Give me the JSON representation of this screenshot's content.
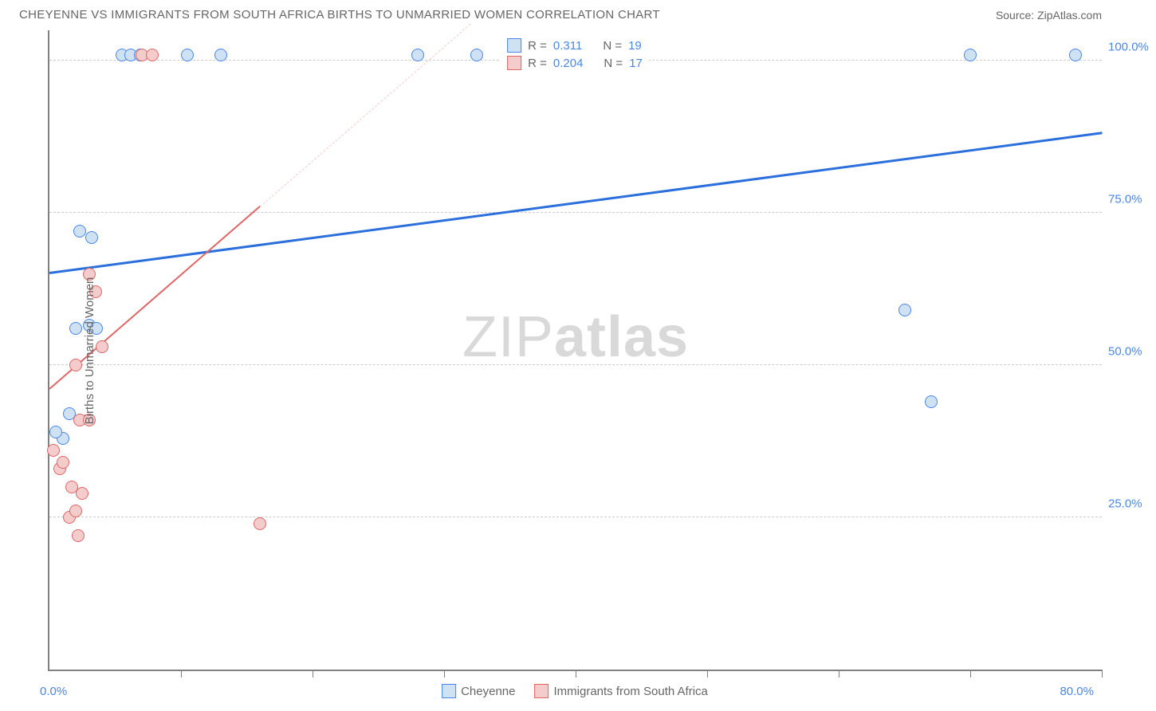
{
  "header": {
    "title": "CHEYENNE VS IMMIGRANTS FROM SOUTH AFRICA BIRTHS TO UNMARRIED WOMEN CORRELATION CHART",
    "source": "Source: ZipAtlas.com"
  },
  "chart": {
    "type": "scatter",
    "y_axis_title": "Births to Unmarried Women",
    "x_min": 0,
    "x_max": 80,
    "y_min": 0,
    "y_max": 105,
    "x_label_min": "0.0%",
    "x_label_max": "80.0%",
    "x_label_color": "#4a86e8",
    "y_ticks": [
      {
        "value": 25,
        "label": "25.0%"
      },
      {
        "value": 50,
        "label": "50.0%"
      },
      {
        "value": 75,
        "label": "75.0%"
      },
      {
        "value": 100,
        "label": "100.0%"
      }
    ],
    "y_tick_label_color": "#4a86e8",
    "x_tick_positions": [
      10,
      20,
      30,
      40,
      50,
      60,
      70,
      80
    ],
    "grid_color": "#cccccc",
    "background_color": "#ffffff",
    "axis_color": "#808080",
    "watermark": {
      "text_light": "ZIP",
      "text_bold": "atlas",
      "color": "#d9d9d9"
    },
    "series": [
      {
        "name": "Cheyenne",
        "marker_fill": "#cfe2f3",
        "marker_stroke": "#4a86e8",
        "marker_size": 16,
        "line_color": "#2b6fdc",
        "line_style": "solid",
        "line_width": 2.5,
        "R": "0.311",
        "N": "19",
        "trend": {
          "x1": 0,
          "y1": 65,
          "x2": 80,
          "y2": 88
        },
        "points": [
          {
            "x": 1.0,
            "y": 38
          },
          {
            "x": 0.5,
            "y": 39
          },
          {
            "x": 1.5,
            "y": 42
          },
          {
            "x": 2.0,
            "y": 56
          },
          {
            "x": 3.0,
            "y": 56.5
          },
          {
            "x": 3.6,
            "y": 56
          },
          {
            "x": 2.3,
            "y": 72
          },
          {
            "x": 3.2,
            "y": 71
          },
          {
            "x": 5.5,
            "y": 101
          },
          {
            "x": 6.2,
            "y": 101
          },
          {
            "x": 6.9,
            "y": 101
          },
          {
            "x": 10.5,
            "y": 101
          },
          {
            "x": 13.0,
            "y": 101
          },
          {
            "x": 28.0,
            "y": 101
          },
          {
            "x": 32.5,
            "y": 101
          },
          {
            "x": 65.0,
            "y": 59
          },
          {
            "x": 67.0,
            "y": 44
          },
          {
            "x": 70.0,
            "y": 101
          },
          {
            "x": 78.0,
            "y": 101
          }
        ]
      },
      {
        "name": "Immigrants from South Africa",
        "marker_fill": "#f4cccc",
        "marker_stroke": "#e06666",
        "marker_size": 16,
        "line_color": "#e06666",
        "line_style_solid_until_x": 16,
        "line_dash_color": "#f4cccc",
        "line_width": 2,
        "R": "0.204",
        "N": "17",
        "trend": {
          "x1": 0,
          "y1": 46,
          "x2": 32,
          "y2": 106
        },
        "points": [
          {
            "x": 0.8,
            "y": 33
          },
          {
            "x": 1.0,
            "y": 34
          },
          {
            "x": 0.3,
            "y": 36
          },
          {
            "x": 2.2,
            "y": 22
          },
          {
            "x": 1.5,
            "y": 25
          },
          {
            "x": 2.0,
            "y": 26
          },
          {
            "x": 2.5,
            "y": 29
          },
          {
            "x": 1.7,
            "y": 30
          },
          {
            "x": 2.3,
            "y": 41
          },
          {
            "x": 3.0,
            "y": 41
          },
          {
            "x": 2.0,
            "y": 50
          },
          {
            "x": 4.0,
            "y": 53
          },
          {
            "x": 3.5,
            "y": 62
          },
          {
            "x": 3.0,
            "y": 65
          },
          {
            "x": 16.0,
            "y": 24
          },
          {
            "x": 7.0,
            "y": 101
          },
          {
            "x": 7.8,
            "y": 101
          }
        ]
      }
    ],
    "legend_top": {
      "r_label": "R =",
      "n_label": "N ="
    },
    "legend_bottom": [
      {
        "label": "Cheyenne",
        "fill": "#cfe2f3",
        "stroke": "#4a86e8"
      },
      {
        "label": "Immigrants from South Africa",
        "fill": "#f4cccc",
        "stroke": "#e06666"
      }
    ]
  }
}
